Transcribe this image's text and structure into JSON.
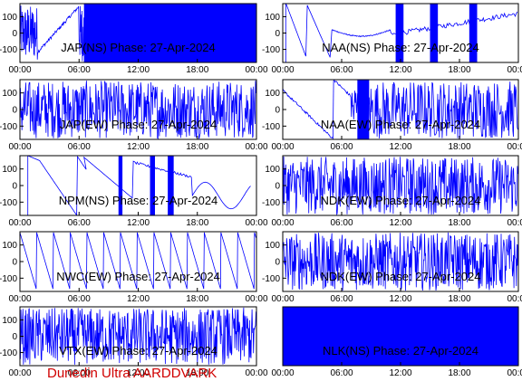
{
  "footer": "Dunedin Ultra AARDDVARK",
  "colors": {
    "trace": "#0000ff",
    "axes": "#000000",
    "footer": "#d00000"
  },
  "chart_data": [
    {
      "type": "line",
      "title": "JAP(NS) Phase: 27-Apr-2024",
      "xticks": [
        "00:00",
        "06:00",
        "12:00",
        "18:00",
        "00:00"
      ],
      "xlim": [
        0,
        24
      ],
      "yticks": [
        -100,
        0,
        100
      ],
      "ylim": [
        -180,
        180
      ],
      "grid": false,
      "pattern": "jap"
    },
    {
      "type": "line",
      "title": "NAA(NS) Phase: 27-Apr-2024",
      "xticks": [
        "00:00",
        "06:00",
        "12:00",
        "18:00",
        "00:00"
      ],
      "xlim": [
        0,
        24
      ],
      "yticks": [
        -100,
        0,
        100
      ],
      "ylim": [
        -180,
        180
      ],
      "grid": false,
      "pattern": "naans"
    },
    {
      "type": "line",
      "title": "JAP(EW) Phase: 27-Apr-2024",
      "xticks": [
        "00:00",
        "06:00",
        "12:00",
        "18:00",
        "00:00"
      ],
      "xlim": [
        0,
        24
      ],
      "yticks": [
        -100,
        0,
        100
      ],
      "ylim": [
        -180,
        180
      ],
      "grid": false,
      "pattern": "dense"
    },
    {
      "type": "line",
      "title": "NAA(EW) Phase: 27-Apr-2024",
      "xticks": [
        "00:00",
        "06:00",
        "12:00",
        "18:00",
        "00:00"
      ],
      "xlim": [
        0,
        24
      ],
      "yticks": [
        -100,
        0,
        100
      ],
      "ylim": [
        -180,
        180
      ],
      "grid": false,
      "pattern": "naaew"
    },
    {
      "type": "line",
      "title": "NPM(NS) Phase: 27-Apr-2024",
      "xticks": [
        "00:00",
        "06:00",
        "12:00",
        "18:00",
        "00:00"
      ],
      "xlim": [
        0,
        24
      ],
      "yticks": [
        -100,
        0,
        100
      ],
      "ylim": [
        -180,
        180
      ],
      "grid": false,
      "pattern": "npm"
    },
    {
      "type": "line",
      "title": "NDK(EW) Phase: 27-Apr-2024",
      "xticks": [
        "00:00",
        "06:00",
        "12:00",
        "18:00",
        "00:00"
      ],
      "xlim": [
        0,
        24
      ],
      "yticks": [
        -100,
        0,
        100
      ],
      "ylim": [
        -180,
        180
      ],
      "grid": false,
      "pattern": "dense"
    },
    {
      "type": "line",
      "title": "NWC(EW) Phase: 27-Apr-2024",
      "xticks": [
        "00:00",
        "06:00",
        "12:00",
        "18:00",
        "00:00"
      ],
      "xlim": [
        0,
        24
      ],
      "yticks": [
        -100,
        0,
        100
      ],
      "ylim": [
        -180,
        180
      ],
      "grid": false,
      "pattern": "nwc"
    },
    {
      "type": "line",
      "title": "NDK(EW) Phase: 27-Apr-2024",
      "xticks": [
        "00:00",
        "06:00",
        "12:00",
        "18:00",
        "00:00"
      ],
      "xlim": [
        0,
        24
      ],
      "yticks": [
        -100,
        0,
        100
      ],
      "ylim": [
        -180,
        180
      ],
      "grid": false,
      "pattern": "dense"
    },
    {
      "type": "line",
      "title": "VTX(EW) Phase: 27-Apr-2024",
      "xticks": [
        "00:00",
        "06:00",
        "12:00",
        "18:00",
        "00:00"
      ],
      "xlim": [
        0,
        24
      ],
      "yticks": [
        -100,
        0,
        100
      ],
      "ylim": [
        -180,
        180
      ],
      "grid": false,
      "pattern": "dense"
    },
    {
      "type": "line",
      "title": "NLK(NS) Phase: 27-Apr-2024",
      "xticks": [
        "00:00",
        "06:00",
        "12:00",
        "18:00",
        "00:00"
      ],
      "xlim": [
        0,
        24
      ],
      "yticks": [],
      "ylim": [
        -180,
        180
      ],
      "grid": false,
      "pattern": "nlk"
    }
  ]
}
